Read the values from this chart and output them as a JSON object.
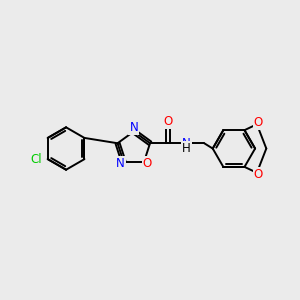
{
  "bg_color": "#ebebeb",
  "bond_color": "#000000",
  "bond_width": 1.4,
  "dbo_inner": 0.09,
  "atom_colors": {
    "C": "#000000",
    "N": "#0000ff",
    "O": "#ff0000",
    "Cl": "#00cc00",
    "H": "#000000"
  },
  "font_size": 8.5,
  "fig_size": [
    3.0,
    3.0
  ],
  "dpi": 100
}
